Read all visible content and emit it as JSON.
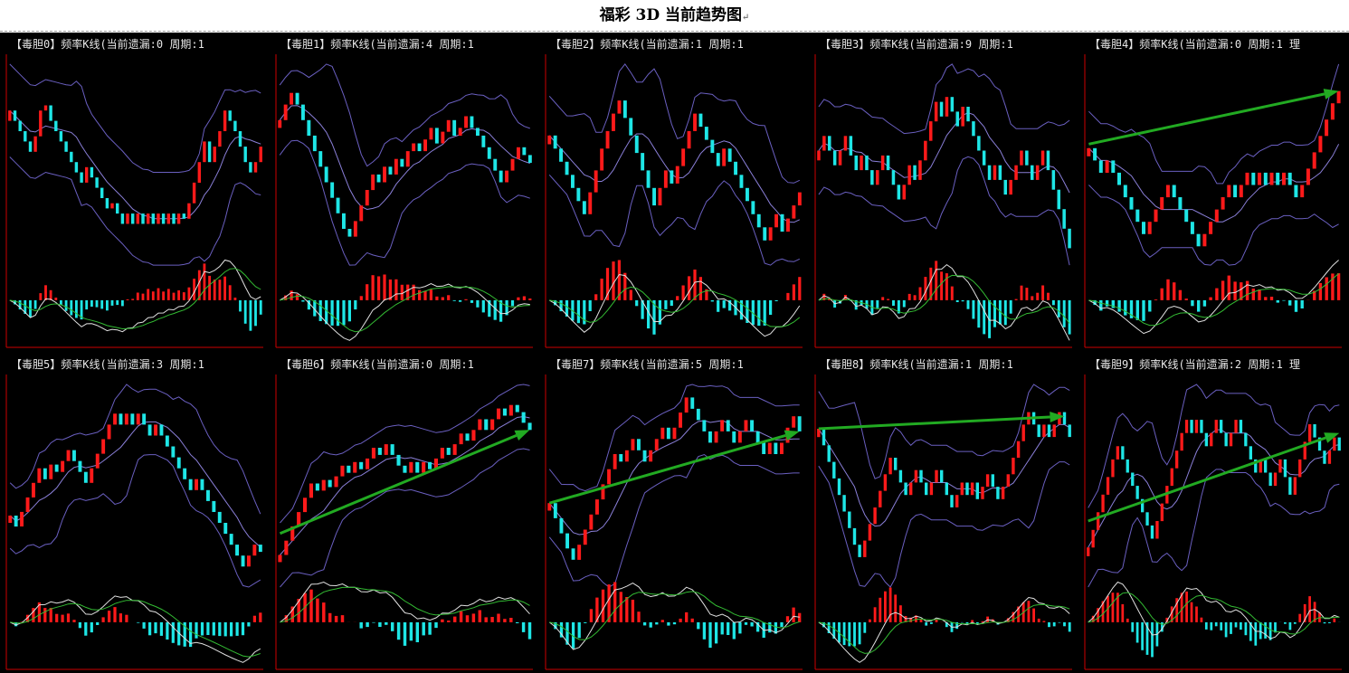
{
  "page": {
    "title": "福彩 3D 当前趋势图",
    "title_mark": "↵"
  },
  "colors": {
    "background": "#000000",
    "rise": "#ff1a1a",
    "fall": "#1ee6e6",
    "band": "#6a5fc0",
    "mid": "#8a7fd8",
    "macd_dif": "#e0e0e0",
    "macd_dea": "#33bb33",
    "arrow": "#22aa22",
    "axis": "#cc0000"
  },
  "chart_data": [
    {
      "type": "candlestick",
      "title": "【毒胆0】频率K线(当前遗漏:0 周期:1",
      "values": [
        3,
        2.8,
        2.6,
        2.4,
        2.2,
        2.5,
        3,
        3.1,
        2.8,
        2.6,
        2.4,
        2.2,
        2.0,
        1.8,
        1.6,
        1.9,
        1.7,
        1.5,
        1.3,
        1.1,
        1.2,
        1.0,
        0.8,
        1.0,
        0.8,
        1.0,
        0.8,
        1.0,
        0.8,
        1.0,
        0.8,
        1.0,
        0.8,
        1.0,
        0.9,
        1.2,
        1.6,
        2.0,
        2.4,
        2.0,
        2.3,
        2.6,
        3.0,
        2.8,
        2.6,
        2.3,
        2.0,
        1.8,
        2.0,
        2.3
      ],
      "trend": null
    },
    {
      "type": "candlestick",
      "title": "【毒胆1】频率K线(当前遗漏:4 周期:1",
      "values": [
        3.8,
        4.2,
        4.5,
        4.2,
        3.8,
        3.4,
        3.0,
        2.6,
        2.2,
        1.8,
        1.4,
        1.0,
        0.8,
        1.2,
        1.6,
        2.0,
        2.4,
        2.2,
        2.6,
        2.4,
        2.8,
        2.6,
        3.0,
        3.2,
        3.0,
        3.3,
        3.6,
        3.2,
        3.5,
        3.8,
        3.4,
        3.6,
        3.9,
        3.6,
        3.4,
        3.1,
        2.8,
        2.5,
        2.2,
        2.5,
        2.8,
        3.1,
        2.9,
        2.7
      ],
      "trend": null
    },
    {
      "type": "candlestick",
      "title": "【毒胆2】频率K线(当前遗漏:1 周期:1",
      "values": [
        3.5,
        3.2,
        2.9,
        2.6,
        2.3,
        2.0,
        1.7,
        2.2,
        2.7,
        3.2,
        3.6,
        4.0,
        4.3,
        3.9,
        3.5,
        3.1,
        2.7,
        2.3,
        1.9,
        2.3,
        2.7,
        2.4,
        2.8,
        3.2,
        3.6,
        4.0,
        3.7,
        3.4,
        3.1,
        2.8,
        3.2,
        2.9,
        2.6,
        2.3,
        2.0,
        1.7,
        1.4,
        1.1,
        1.4,
        1.7,
        1.3,
        1.6,
        1.9,
        2.2
      ],
      "trend": null
    },
    {
      "type": "candlestick",
      "title": "【毒胆3】频率K线(当前遗漏:9 周期:1",
      "values": [
        3.0,
        3.3,
        3.0,
        2.7,
        3.0,
        3.3,
        2.9,
        2.6,
        2.9,
        2.6,
        2.3,
        2.6,
        2.9,
        2.6,
        2.3,
        2.0,
        2.3,
        2.7,
        2.4,
        2.8,
        3.2,
        3.6,
        4.0,
        3.7,
        4.1,
        3.8,
        3.5,
        3.9,
        3.6,
        3.3,
        3.0,
        2.7,
        2.4,
        2.7,
        2.4,
        2.1,
        2.4,
        2.7,
        3.0,
        2.7,
        2.4,
        2.7,
        3.0,
        2.6,
        2.2,
        1.8,
        1.4,
        1.0
      ],
      "trend": null
    },
    {
      "type": "candlestick",
      "title": "【毒胆4】频率K线(当前遗漏:0 周期:1 理",
      "values": [
        3.2,
        2.9,
        2.6,
        2.9,
        2.6,
        2.3,
        2.0,
        1.7,
        1.4,
        1.1,
        1.4,
        1.7,
        2.0,
        2.3,
        2.0,
        1.7,
        1.4,
        1.1,
        0.8,
        1.1,
        1.4,
        1.7,
        2.0,
        2.3,
        2.0,
        2.3,
        2.6,
        2.3,
        2.6,
        2.3,
        2.6,
        2.3,
        2.6,
        2.3,
        2.0,
        2.3,
        2.7,
        3.1,
        3.5,
        3.9,
        4.3,
        4.6
      ],
      "trend": {
        "from": [
          0,
          3.3
        ],
        "to": [
          41,
          4.6
        ]
      }
    },
    {
      "type": "candlestick",
      "title": "【毒胆5】频率K线(当前遗漏:3 周期:1",
      "values": [
        1.8,
        1.5,
        1.9,
        2.3,
        2.7,
        3.1,
        2.8,
        3.2,
        3.0,
        3.3,
        3.6,
        3.3,
        3.0,
        2.7,
        3.1,
        3.5,
        3.9,
        4.3,
        4.6,
        4.3,
        4.6,
        4.3,
        4.6,
        4.3,
        4.0,
        4.3,
        4.0,
        3.7,
        3.4,
        3.1,
        2.8,
        2.5,
        2.8,
        2.5,
        2.2,
        1.9,
        1.6,
        1.3,
        1.0,
        0.7,
        0.4,
        0.7,
        1.0,
        0.8
      ],
      "trend": null
    },
    {
      "type": "candlestick",
      "title": "【毒胆6】频率K线(当前遗漏:0 周期:1",
      "values": [
        1.0,
        1.4,
        1.8,
        2.2,
        2.6,
        3.0,
        2.8,
        3.1,
        2.9,
        3.2,
        3.5,
        3.3,
        3.6,
        3.4,
        3.7,
        4.0,
        3.8,
        4.1,
        3.8,
        3.5,
        3.3,
        3.6,
        3.3,
        3.6,
        3.4,
        3.7,
        4.0,
        3.8,
        4.1,
        4.4,
        4.2,
        4.5,
        4.8,
        4.5,
        4.8,
        5.1,
        4.9,
        5.2,
        5.0,
        4.7,
        4.5
      ],
      "trend": {
        "from": [
          0,
          1.6
        ],
        "to": [
          40,
          4.5
        ]
      }
    },
    {
      "type": "candlestick",
      "title": "【毒胆7】频率K线(当前遗漏:5 周期:1",
      "values": [
        2.0,
        1.6,
        1.2,
        0.8,
        0.5,
        0.9,
        1.3,
        1.7,
        2.1,
        2.5,
        2.9,
        3.3,
        3.1,
        3.4,
        3.7,
        3.4,
        3.1,
        3.4,
        3.7,
        4.0,
        3.7,
        4.0,
        4.4,
        4.8,
        4.5,
        4.2,
        3.9,
        3.6,
        3.9,
        4.2,
        3.9,
        3.6,
        3.9,
        4.2,
        3.9,
        3.6,
        3.3,
        3.6,
        3.3,
        3.6,
        4.0,
        4.3,
        3.9
      ],
      "trend": {
        "from": [
          0,
          2.0
        ],
        "to": [
          42,
          3.9
        ]
      }
    },
    {
      "type": "candlestick",
      "title": "【毒胆8】频率K线(当前遗漏:1 周期:1",
      "values": [
        3.6,
        3.2,
        2.8,
        2.4,
        2.0,
        1.6,
        1.2,
        0.8,
        0.5,
        0.9,
        1.3,
        1.7,
        2.1,
        2.5,
        2.9,
        2.6,
        2.3,
        2.0,
        2.3,
        2.6,
        2.3,
        2.0,
        2.3,
        2.6,
        2.3,
        2.0,
        1.7,
        2.0,
        2.3,
        2.0,
        2.3,
        1.9,
        2.2,
        2.5,
        2.2,
        1.9,
        2.2,
        2.5,
        2.9,
        3.3,
        3.7,
        4.0,
        3.7,
        3.4,
        3.7,
        3.4,
        3.7,
        4.0,
        3.7,
        3.4
      ],
      "trend": {
        "from": [
          0,
          3.6
        ],
        "to": [
          48,
          3.9
        ]
      }
    },
    {
      "type": "candlestick",
      "title": "【毒胆9】频率K线(当前遗漏:2 周期:1 理",
      "values": [
        1.0,
        1.4,
        1.8,
        2.2,
        2.6,
        3.0,
        3.3,
        3.0,
        2.7,
        2.4,
        2.1,
        1.8,
        1.5,
        1.2,
        1.6,
        2.0,
        2.4,
        2.8,
        3.2,
        3.6,
        3.9,
        3.6,
        3.9,
        3.6,
        3.3,
        3.6,
        3.9,
        3.6,
        3.3,
        3.6,
        3.9,
        3.6,
        3.3,
        3.0,
        2.7,
        3.0,
        2.7,
        2.4,
        2.7,
        3.0,
        2.6,
        2.2,
        2.6,
        3.0,
        3.4,
        3.8,
        3.5,
        3.2,
        2.9,
        3.2,
        3.5,
        3.2
      ],
      "trend": {
        "from": [
          0,
          1.6
        ],
        "to": [
          51,
          3.6
        ]
      }
    }
  ]
}
